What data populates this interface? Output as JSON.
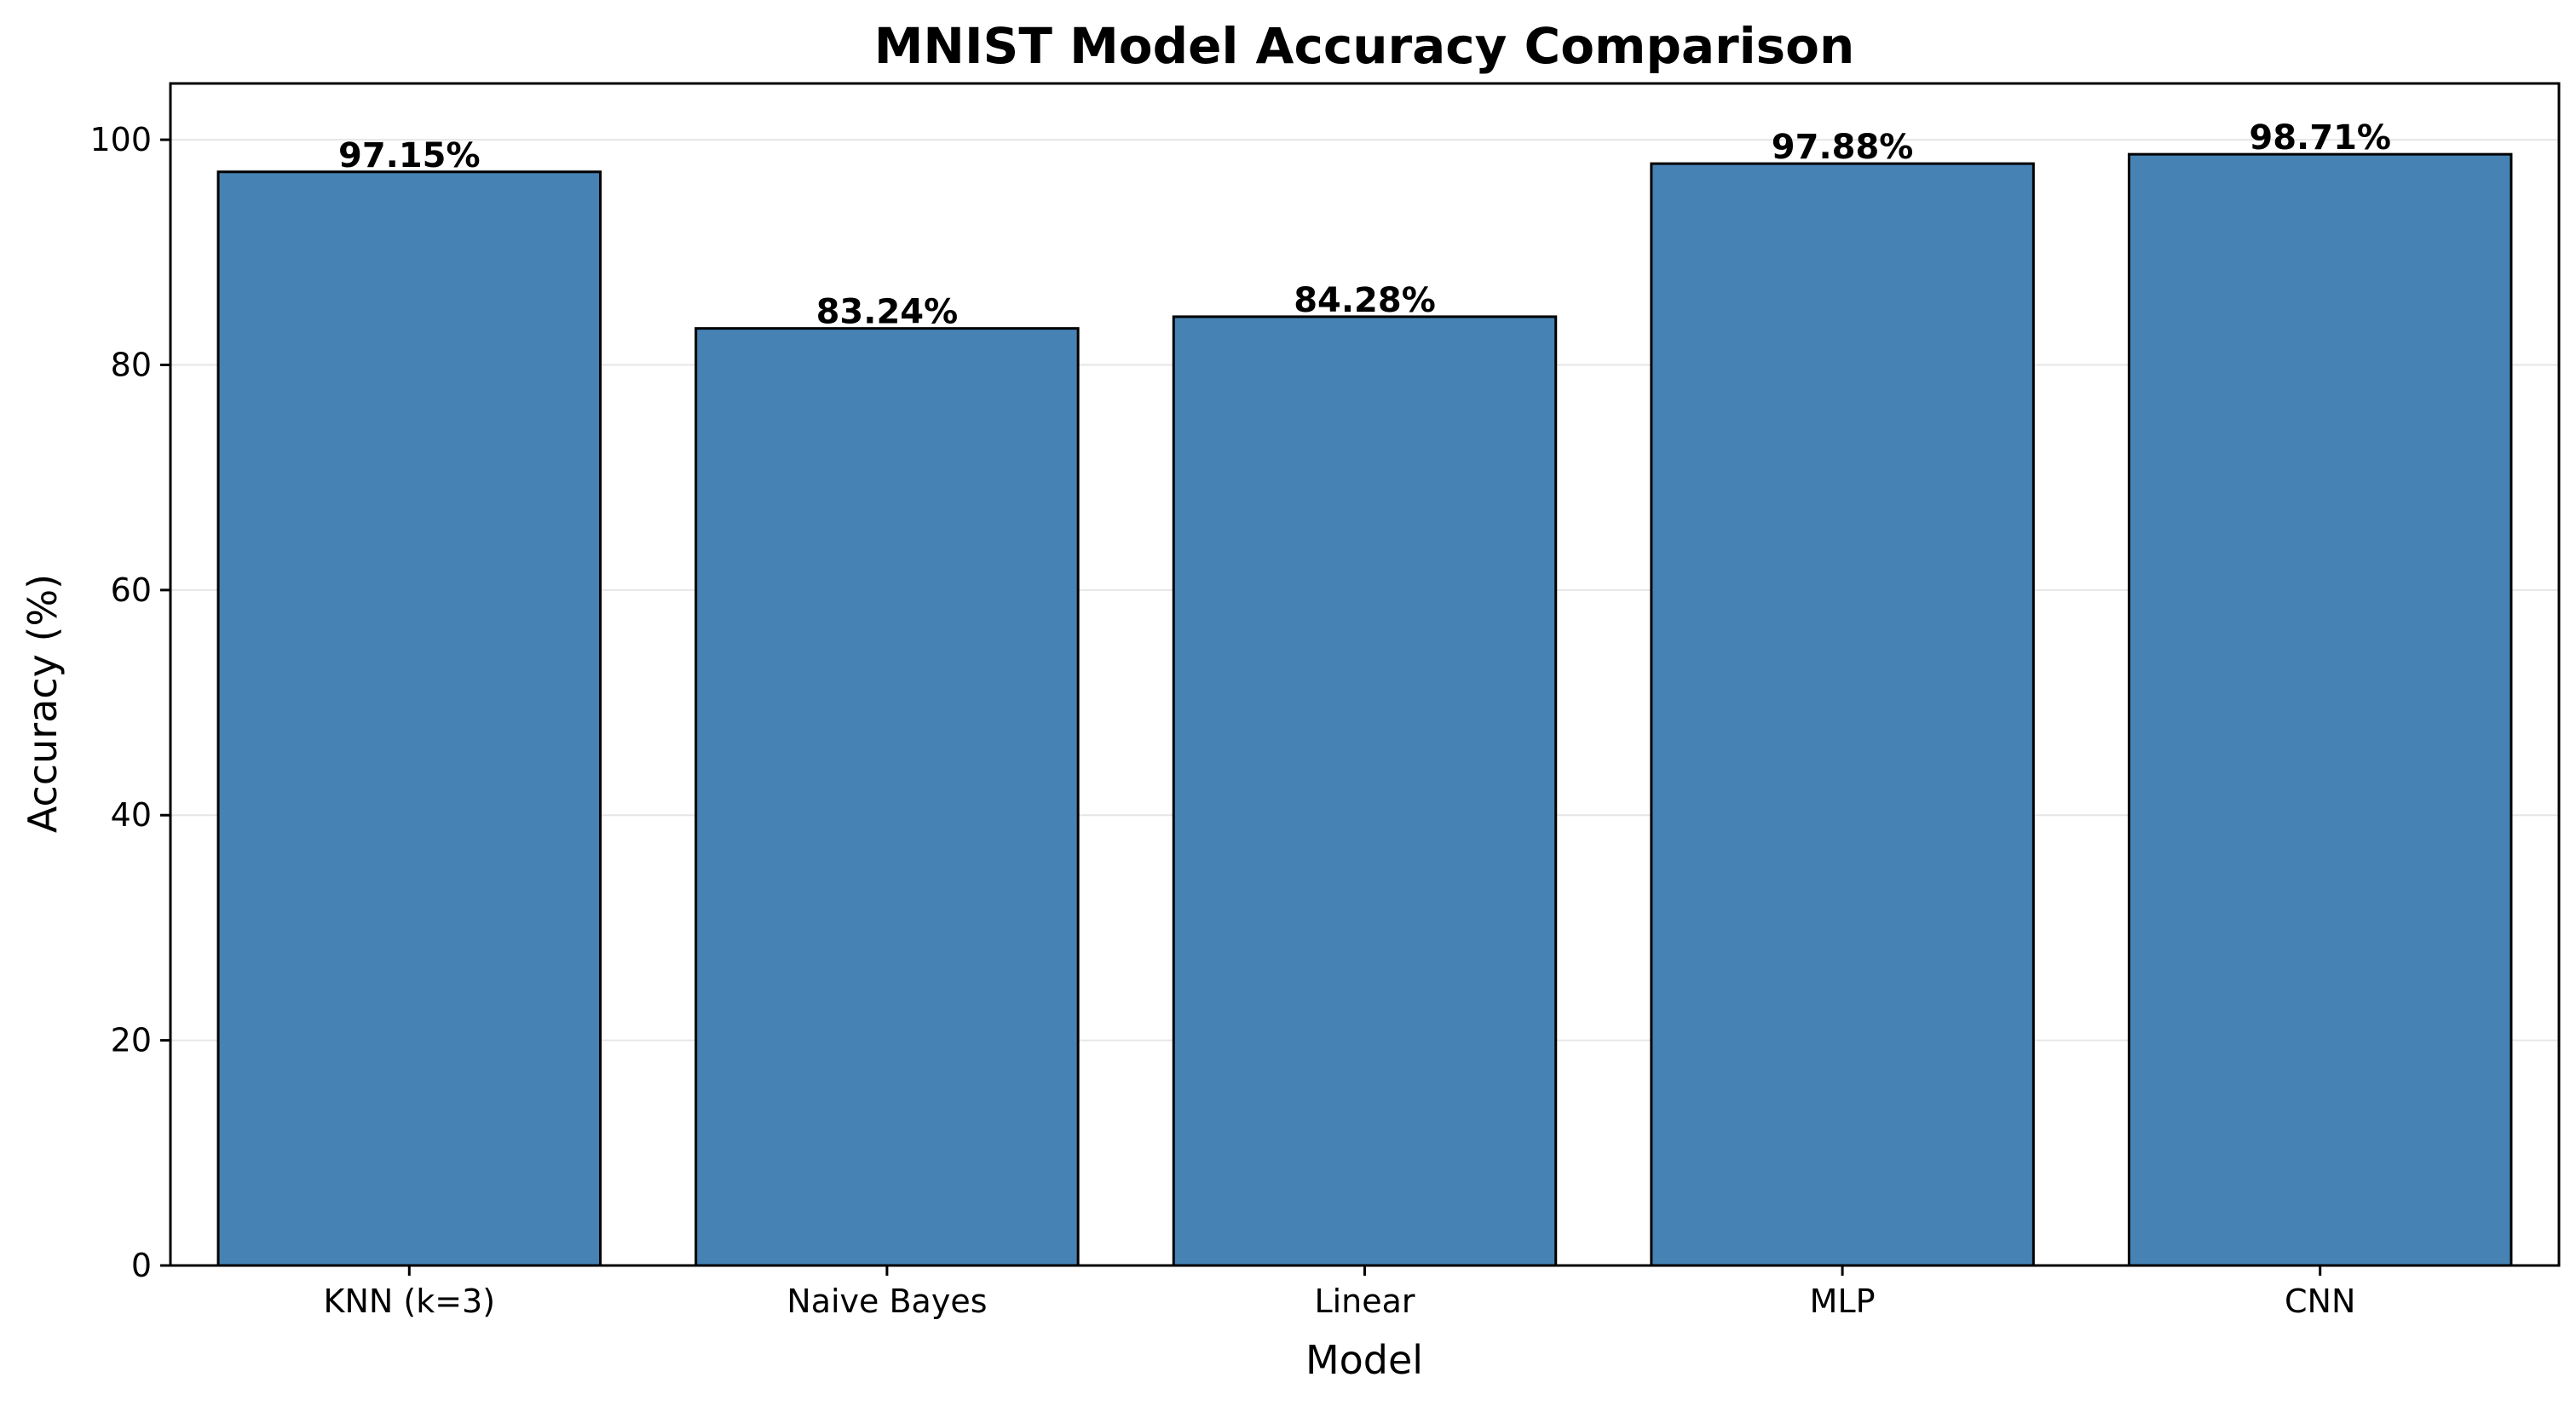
{
  "chart_data": {
    "type": "bar",
    "title": "MNIST Model Accuracy Comparison",
    "xlabel": "Model",
    "ylabel": "Accuracy (%)",
    "categories": [
      "KNN (k=3)",
      "Naive Bayes",
      "Linear",
      "MLP",
      "CNN"
    ],
    "values": [
      97.15,
      83.24,
      84.28,
      97.88,
      98.71
    ],
    "data_labels": [
      "97.15%",
      "83.24%",
      "84.28%",
      "97.88%",
      "98.71%"
    ],
    "ylim": [
      0,
      105
    ],
    "yticks": [
      0,
      20,
      40,
      60,
      80,
      100
    ],
    "grid": "y",
    "legend": "none",
    "colors": {
      "bar_fill": "#4682b4",
      "bar_edge": "#000000",
      "grid": "#e6e6e6",
      "axis": "#000000"
    }
  }
}
